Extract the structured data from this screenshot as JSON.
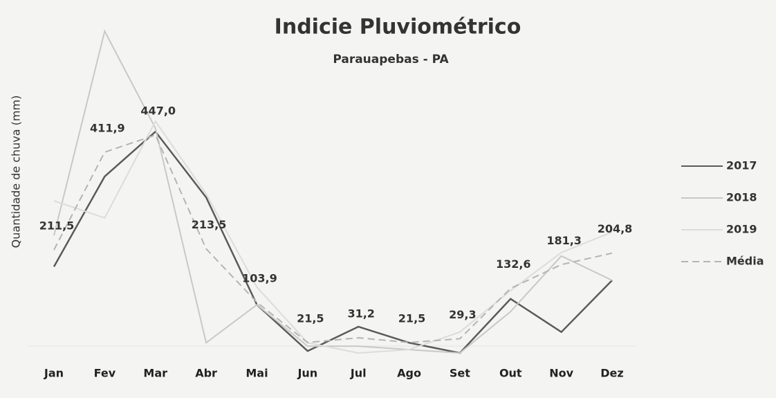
{
  "chart_data": {
    "type": "line",
    "title": "Indicie Pluviométrico",
    "subtitle": "Parauapebas - PA",
    "y_label": "Quantidade de chuva (mm)",
    "categories": [
      "Jan",
      "Fev",
      "Mar",
      "Abr",
      "Mai",
      "Jun",
      "Jul",
      "Ago",
      "Set",
      "Out",
      "Nov",
      "Dez"
    ],
    "series": [
      {
        "name": "2017",
        "color": "#5a5a5a",
        "values": [
          177,
          362,
          454,
          319,
          99,
          4,
          54,
          21,
          0,
          111,
          43,
          149
        ]
      },
      {
        "name": "2018",
        "color": "#c8c8c8",
        "values": [
          241,
          660,
          461,
          21,
          99,
          14,
          14,
          7,
          0,
          85,
          199,
          149
        ]
      },
      {
        "name": "2019",
        "color": "#dcdcdc",
        "values": [
          312,
          277,
          475,
          326,
          135,
          21,
          0,
          7,
          43,
          128,
          206,
          248
        ]
      },
      {
        "name": "Média",
        "color": "#b4b4b4",
        "line_style": "dashed",
        "values": [
          211.5,
          411.9,
          447.0,
          213.5,
          103.9,
          21.5,
          31.2,
          21.5,
          29.3,
          132.6,
          181.3,
          204.8
        ],
        "value_labels": [
          "211,5",
          "411,9",
          "447,0",
          "213,5",
          "103,9",
          "21,5",
          "31,2",
          "21,5",
          "29,3",
          "132,6",
          "181,3",
          "204,8"
        ]
      }
    ],
    "legend": "right"
  }
}
